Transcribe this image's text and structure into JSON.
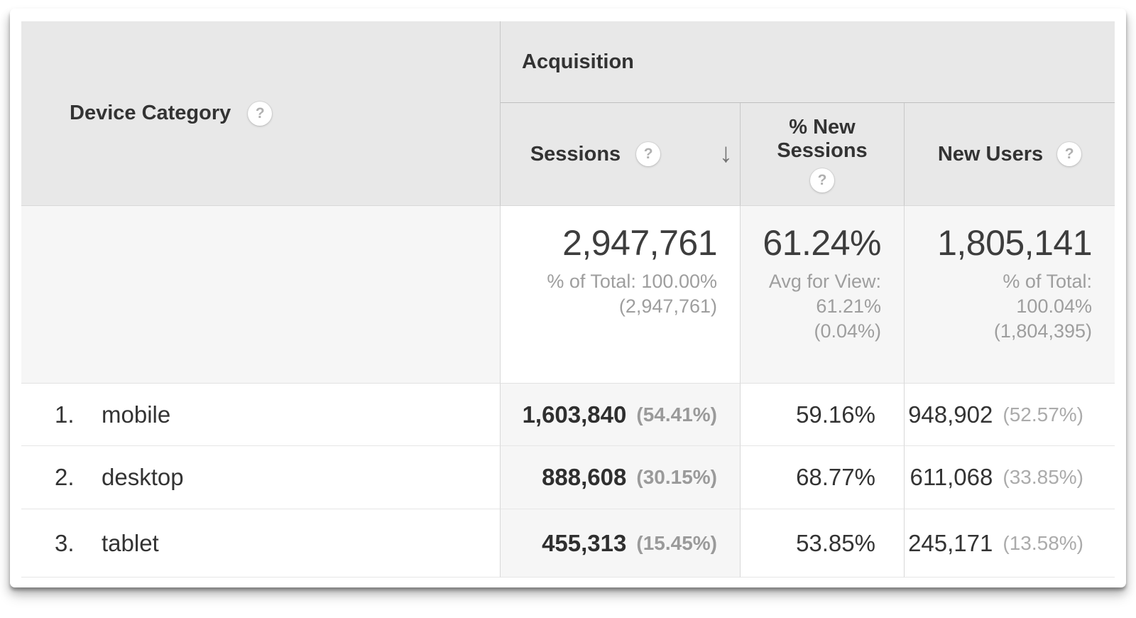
{
  "icons": {
    "help": "?",
    "sort_desc": "↓"
  },
  "colors": {
    "header_bg": "#e8e8e8",
    "highlight_bg": "#f6f6f6",
    "text_dark": "#333333",
    "text_gray": "#9e9e9e"
  },
  "report": {
    "dimension_header": {
      "label": "Device Category"
    },
    "group_header": {
      "label": "Acquisition"
    },
    "columns": [
      {
        "label": "Sessions",
        "sort": "descending"
      },
      {
        "label": "% New Sessions"
      },
      {
        "label": "New Users"
      }
    ],
    "totals": {
      "sessions": {
        "value": "2,947,761",
        "sub": [
          "% of Total: 100.00%",
          "(2,947,761)"
        ]
      },
      "percent_new_sessions": {
        "value": "61.24%",
        "sub": [
          "Avg for View:",
          "61.21%",
          "(0.04%)"
        ]
      },
      "new_users": {
        "value": "1,805,141",
        "sub": [
          "% of Total:",
          "100.04%",
          "(1,804,395)"
        ]
      }
    },
    "rows": [
      {
        "index": "1.",
        "category": "mobile",
        "sessions": "1,603,840",
        "sessions_share": "(54.41%)",
        "percent_new_sessions": "59.16%",
        "new_users": "948,902",
        "new_users_share": "(52.57%)"
      },
      {
        "index": "2.",
        "category": "desktop",
        "sessions": "888,608",
        "sessions_share": "(30.15%)",
        "percent_new_sessions": "68.77%",
        "new_users": "611,068",
        "new_users_share": "(33.85%)"
      },
      {
        "index": "3.",
        "category": "tablet",
        "sessions": "455,313",
        "sessions_share": "(15.45%)",
        "percent_new_sessions": "53.85%",
        "new_users": "245,171",
        "new_users_share": "(13.58%)"
      }
    ]
  }
}
